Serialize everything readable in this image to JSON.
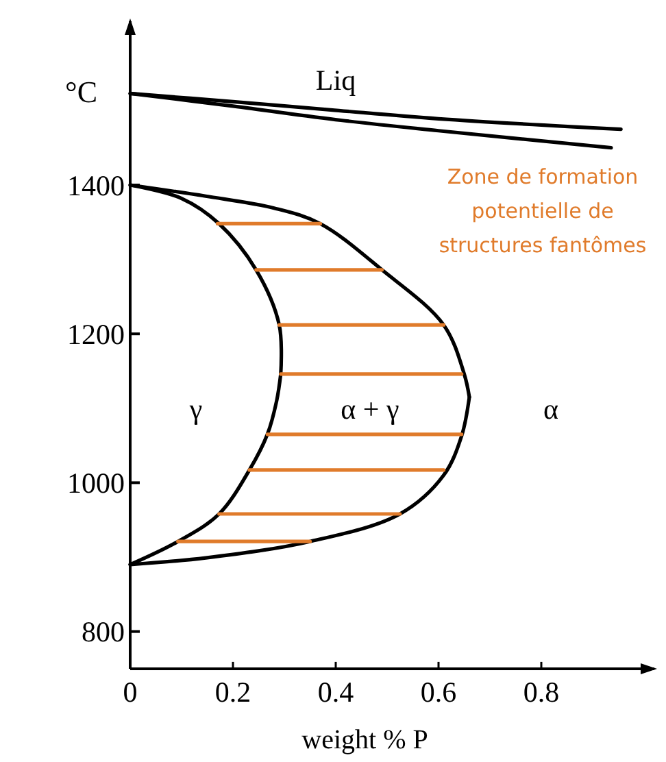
{
  "chart_data": {
    "type": "line",
    "xlabel": "weight % P",
    "ylabel": "°C",
    "xlim": [
      0,
      1.02
    ],
    "ylim": [
      750,
      1620
    ],
    "xticks": [
      0,
      0.2,
      0.4,
      0.6,
      0.8
    ],
    "yticks": [
      800,
      1000,
      1200,
      1400
    ],
    "grid": false,
    "marker": "none",
    "line_style": "solid",
    "series": [
      {
        "color": "#000000",
        "x": [
          0,
          0.2,
          0.39,
          0.6,
          0.955
        ],
        "values": [
          1523,
          1512,
          1501,
          1489,
          1475
        ]
      },
      {
        "color": "#000000",
        "x": [
          0,
          0.2,
          0.41,
          0.6,
          0.936
        ],
        "values": [
          1523,
          1506,
          1487,
          1473,
          1450
        ]
      },
      {
        "color": "#000000",
        "x": [
          0,
          0.147,
          0.28,
          0.37,
          0.49,
          0.61,
          0.65,
          0.66
        ],
        "values": [
          1400,
          1385,
          1369,
          1348,
          1286,
          1212,
          1146,
          1115
        ]
      },
      {
        "color": "#000000",
        "x": [
          0.66,
          0.645,
          0.61,
          0.525,
          0.35,
          0.147,
          0
        ],
        "values": [
          1115,
          1063,
          1010,
          958,
          921,
          899,
          890
        ]
      },
      {
        "color": "#000000",
        "x": [
          0,
          0.1,
          0.173,
          0.245,
          0.29,
          0.293
        ],
        "values": [
          1400,
          1382,
          1348,
          1286,
          1212,
          1146
        ]
      },
      {
        "color": "#000000",
        "x": [
          0.293,
          0.285,
          0.267,
          0.232,
          0.173,
          0.093,
          0
        ],
        "values": [
          1146,
          1110,
          1065,
          1017,
          958,
          921,
          890
        ]
      },
      {
        "color": "#e07b2b",
        "x": [
          0.17,
          0.37
        ],
        "values": [
          1348,
          1348
        ]
      },
      {
        "color": "#e07b2b",
        "x": [
          0.245,
          0.49
        ],
        "values": [
          1286,
          1286
        ]
      },
      {
        "color": "#e07b2b",
        "x": [
          0.29,
          0.61
        ],
        "values": [
          1212,
          1212
        ]
      },
      {
        "color": "#e07b2b",
        "x": [
          0.293,
          0.645
        ],
        "values": [
          1146,
          1146
        ]
      },
      {
        "color": "#e07b2b",
        "x": [
          0.267,
          0.645
        ],
        "values": [
          1065,
          1065
        ]
      },
      {
        "color": "#e07b2b",
        "x": [
          0.232,
          0.61
        ],
        "values": [
          1017,
          1017
        ]
      },
      {
        "color": "#e07b2b",
        "x": [
          0.173,
          0.525
        ],
        "values": [
          958,
          958
        ]
      },
      {
        "color": "#e07b2b",
        "x": [
          0.093,
          0.35
        ],
        "values": [
          921,
          921
        ]
      }
    ],
    "annotations": [
      "Liq",
      "γ",
      "α + γ",
      "α",
      "Zone de formation potentielle de structures fantômes"
    ]
  }
}
